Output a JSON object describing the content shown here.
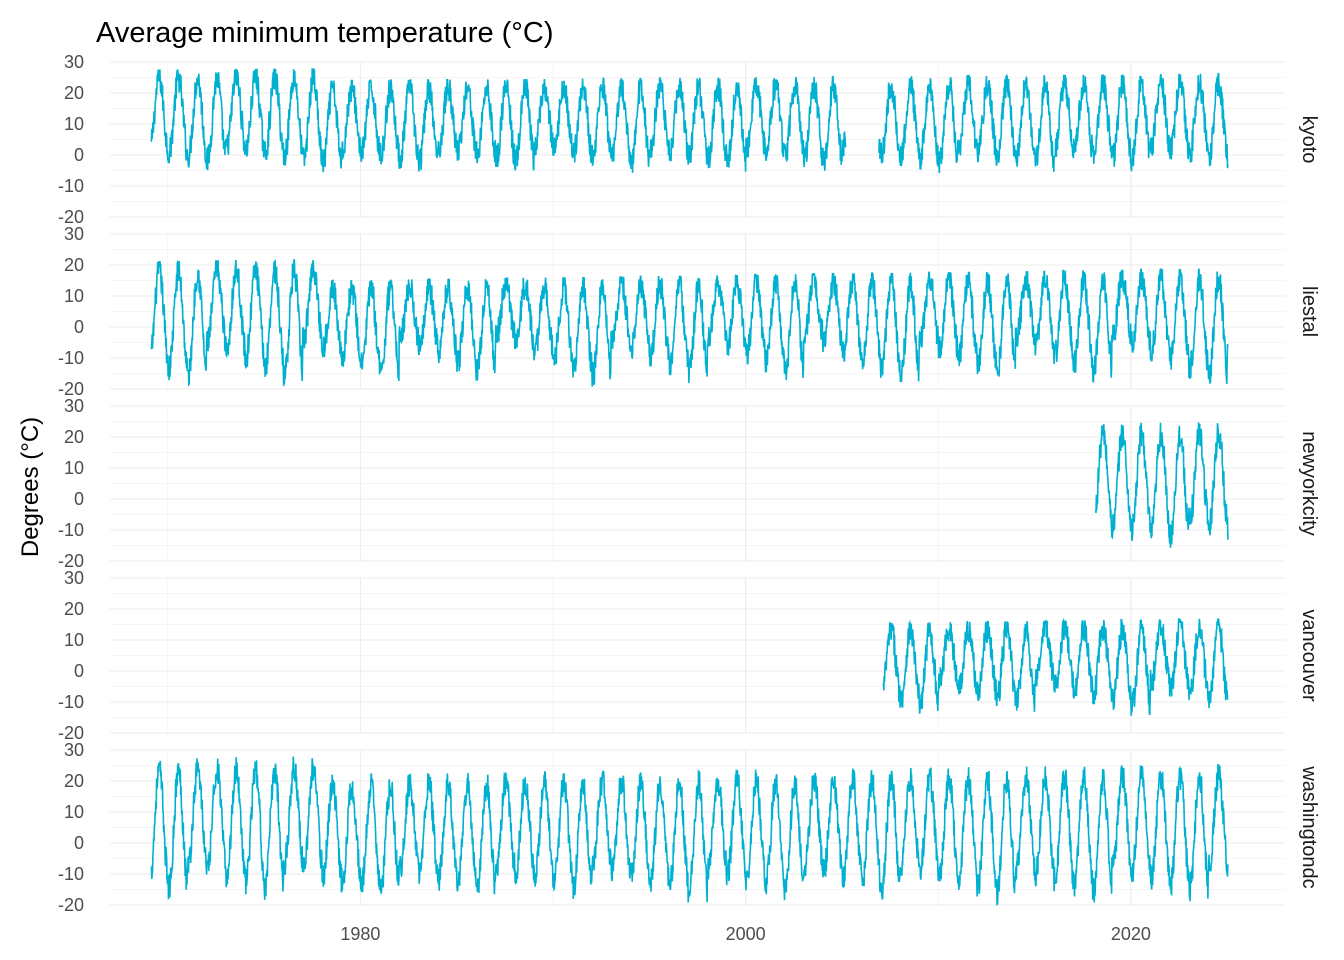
{
  "chart_data": {
    "type": "line",
    "title": "Average minimum temperature (°C)",
    "ylabel": "Degrees (°C)",
    "xlabel": "",
    "xlim": [
      1967.0,
      2028.0
    ],
    "ylim": [
      -20,
      30
    ],
    "x_ticks": [
      1980,
      2000,
      2020
    ],
    "y_ticks": [
      -20,
      -10,
      0,
      10,
      20,
      30
    ],
    "grid": true,
    "legend": "none",
    "series_color": "#00B0D0",
    "facets": [
      {
        "name": "kyoto",
        "start_year": 1969,
        "end_year": 2025,
        "summer_peak": [
          24,
          28
        ],
        "winter_trough": [
          -6,
          0
        ],
        "gap": [
          2005.2,
          2006.9
        ]
      },
      {
        "name": "liestal",
        "start_year": 1969,
        "end_year": 2025,
        "summer_peak": [
          15,
          22
        ],
        "winter_trough": [
          -20,
          -5
        ],
        "gap": null
      },
      {
        "name": "newyorkcity",
        "start_year": 2018,
        "end_year": 2025,
        "summer_peak": [
          21,
          28
        ],
        "winter_trough": [
          -16,
          -10
        ],
        "gap": null
      },
      {
        "name": "vancouver",
        "start_year": 2007,
        "end_year": 2025,
        "summer_peak": [
          13,
          20
        ],
        "winter_trough": [
          -15,
          -5
        ],
        "gap": null
      },
      {
        "name": "washingtondc",
        "start_year": 1969,
        "end_year": 2025,
        "summer_peak": [
          22,
          28
        ],
        "winter_trough": [
          -20,
          -10
        ],
        "gap": null
      }
    ]
  }
}
